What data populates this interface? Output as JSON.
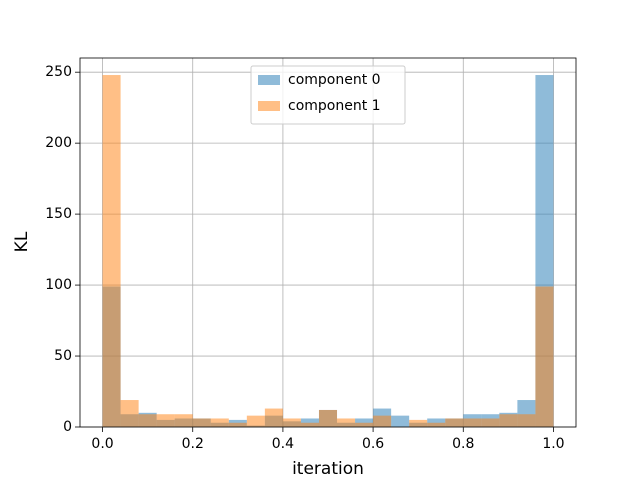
{
  "chart_data": {
    "type": "histogram",
    "xlabel": "iteration",
    "ylabel": "KL",
    "bins": [
      0,
      0.04,
      0.08,
      0.12,
      0.16,
      0.2,
      0.24,
      0.28,
      0.32,
      0.36,
      0.4,
      0.44,
      0.48,
      0.52,
      0.56,
      0.6,
      0.64,
      0.68,
      0.72,
      0.76,
      0.8,
      0.84,
      0.88,
      0.92,
      0.96,
      1
    ],
    "series": [
      {
        "name": "component 0",
        "color": "#1f77b4",
        "values": [
          99,
          9,
          10,
          5,
          6,
          6,
          3,
          5,
          1,
          8,
          4,
          6,
          12,
          3,
          6,
          13,
          8,
          3,
          6,
          6,
          9,
          9,
          10,
          19,
          248
        ]
      },
      {
        "name": "component 1",
        "color": "#ff7f0e",
        "values": [
          248,
          19,
          9,
          9,
          9,
          6,
          6,
          3,
          8,
          13,
          6,
          3,
          12,
          6,
          3,
          8,
          0,
          5,
          3,
          6,
          6,
          6,
          9,
          9,
          99
        ]
      }
    ],
    "opacity": 0.5,
    "xlim": [
      -0.05,
      1.05
    ],
    "xticks": [
      {
        "value": 0,
        "label": "0.0"
      },
      0.2,
      0.4,
      0.6,
      0.8,
      {
        "value": 1,
        "label": "1.0"
      }
    ],
    "ylim": [
      0,
      260
    ],
    "yticks": [
      0,
      50,
      100,
      150,
      200,
      250
    ],
    "grid": true,
    "legend": "upper center"
  }
}
